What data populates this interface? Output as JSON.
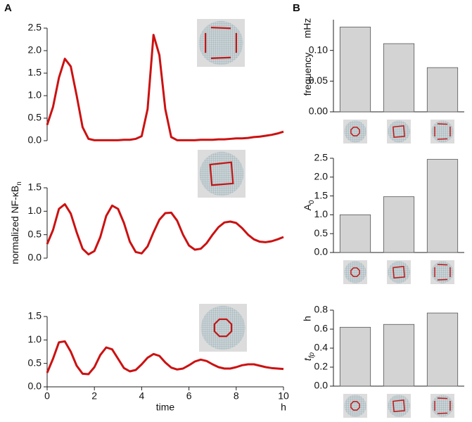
{
  "panel_labels": [
    "A",
    "B"
  ],
  "chart_data": [
    {
      "type": "line",
      "color": "#cc1111",
      "x": [
        0,
        0.25,
        0.5,
        0.75,
        1,
        1.25,
        1.5,
        1.75,
        2,
        2.25,
        2.5,
        2.75,
        3,
        3.25,
        3.5,
        3.75,
        4,
        4.25,
        4.5,
        4.75,
        5,
        5.25,
        5.5,
        5.75,
        6,
        6.25,
        6.5,
        6.75,
        7,
        7.25,
        7.5,
        7.75,
        8,
        8.25,
        8.5,
        8.75,
        9,
        9.25,
        9.5,
        9.75,
        10
      ],
      "values": [
        0.35,
        0.75,
        1.4,
        1.82,
        1.65,
        1.0,
        0.3,
        0.04,
        0.01,
        0.01,
        0.01,
        0.01,
        0.01,
        0.02,
        0.02,
        0.04,
        0.1,
        0.7,
        2.35,
        1.9,
        0.7,
        0.08,
        0.01,
        0.01,
        0.01,
        0.01,
        0.02,
        0.02,
        0.02,
        0.03,
        0.03,
        0.04,
        0.05,
        0.05,
        0.06,
        0.08,
        0.09,
        0.11,
        0.13,
        0.16,
        0.2
      ],
      "xlim": [
        0,
        10
      ],
      "ylim": [
        0,
        2.5
      ],
      "yticks": [
        {
          "value": 0,
          "label": "0.0"
        },
        0.5,
        {
          "value": 1,
          "label": "1.0"
        },
        1.5,
        {
          "value": 2,
          "label": "2.0"
        },
        2.5
      ]
    },
    {
      "type": "line",
      "color": "#cc1111",
      "ylabel": "normalized NF-κB",
      "ylabel_sub": "n",
      "x": [
        0,
        0.25,
        0.5,
        0.75,
        1,
        1.25,
        1.5,
        1.75,
        2,
        2.25,
        2.5,
        2.75,
        3,
        3.25,
        3.5,
        3.75,
        4,
        4.25,
        4.5,
        4.75,
        5,
        5.25,
        5.5,
        5.75,
        6,
        6.25,
        6.5,
        6.75,
        7,
        7.25,
        7.5,
        7.75,
        8,
        8.25,
        8.5,
        8.75,
        9,
        9.25,
        9.5,
        9.75,
        10
      ],
      "values": [
        0.3,
        0.6,
        1.05,
        1.15,
        0.95,
        0.55,
        0.2,
        0.08,
        0.15,
        0.45,
        0.9,
        1.12,
        1.05,
        0.75,
        0.35,
        0.13,
        0.1,
        0.25,
        0.55,
        0.82,
        0.96,
        0.97,
        0.8,
        0.5,
        0.27,
        0.18,
        0.2,
        0.32,
        0.5,
        0.66,
        0.76,
        0.78,
        0.75,
        0.64,
        0.5,
        0.4,
        0.35,
        0.34,
        0.36,
        0.4,
        0.45
      ],
      "xlim": [
        0,
        10
      ],
      "ylim": [
        0,
        1.5
      ],
      "yticks": [
        {
          "value": 0,
          "label": "0.0"
        },
        0.5,
        {
          "value": 1,
          "label": "1.0"
        },
        1.5
      ]
    },
    {
      "type": "line",
      "color": "#cc1111",
      "xlabel": "time",
      "xunit": "h",
      "x": [
        0,
        0.25,
        0.5,
        0.75,
        1,
        1.25,
        1.5,
        1.75,
        2,
        2.25,
        2.5,
        2.75,
        3,
        3.25,
        3.5,
        3.75,
        4,
        4.25,
        4.5,
        4.75,
        5,
        5.25,
        5.5,
        5.75,
        6,
        6.25,
        6.5,
        6.75,
        7,
        7.25,
        7.5,
        7.75,
        8,
        8.25,
        8.5,
        8.75,
        9,
        9.25,
        9.5,
        9.75,
        10
      ],
      "values": [
        0.3,
        0.6,
        0.95,
        0.97,
        0.75,
        0.45,
        0.28,
        0.27,
        0.42,
        0.68,
        0.84,
        0.8,
        0.6,
        0.4,
        0.33,
        0.36,
        0.48,
        0.62,
        0.7,
        0.66,
        0.52,
        0.41,
        0.37,
        0.39,
        0.46,
        0.54,
        0.58,
        0.55,
        0.48,
        0.42,
        0.39,
        0.39,
        0.42,
        0.46,
        0.48,
        0.48,
        0.45,
        0.42,
        0.4,
        0.39,
        0.38
      ],
      "xlim": [
        0,
        10
      ],
      "xticks": [
        0,
        2,
        4,
        6,
        8,
        10
      ],
      "ylim": [
        0,
        1.5
      ],
      "yticks": [
        {
          "value": 0,
          "label": "0.0"
        },
        0.5,
        {
          "value": 1,
          "label": "1.0"
        },
        1.5
      ]
    },
    {
      "type": "bar",
      "color": "#d3d3d3",
      "ylabel": "frequency",
      "yunit": "mHz",
      "categories": [
        null,
        null,
        null
      ],
      "values": [
        0.138,
        0.111,
        0.072
      ],
      "ylim": [
        0,
        0.15
      ],
      "yticks": [
        {
          "value": 0,
          "label": "0.00"
        },
        0.05,
        {
          "value": 0.1,
          "label": "0.10"
        }
      ]
    },
    {
      "type": "bar",
      "color": "#d3d3d3",
      "ylabel": "A",
      "ylabel_sub": "0",
      "categories": [
        null,
        null,
        null
      ],
      "values": [
        1.0,
        1.48,
        2.47
      ],
      "ylim": [
        0,
        2.5
      ],
      "yticks": [
        {
          "value": 0,
          "label": "0.0"
        },
        0.5,
        {
          "value": 1,
          "label": "1.0"
        },
        1.5,
        {
          "value": 2,
          "label": "2.0"
        },
        2.5
      ]
    },
    {
      "type": "bar",
      "color": "#d3d3d3",
      "ylabel": "t",
      "ylabel_sub": "fp",
      "yunit": "h",
      "categories": [
        null,
        null,
        null
      ],
      "values": [
        0.62,
        0.65,
        0.77
      ],
      "ylim": [
        0,
        0.8
      ],
      "yticks": [
        {
          "value": 0,
          "label": "0.0"
        },
        0.2,
        0.4,
        0.6,
        0.8
      ]
    }
  ]
}
